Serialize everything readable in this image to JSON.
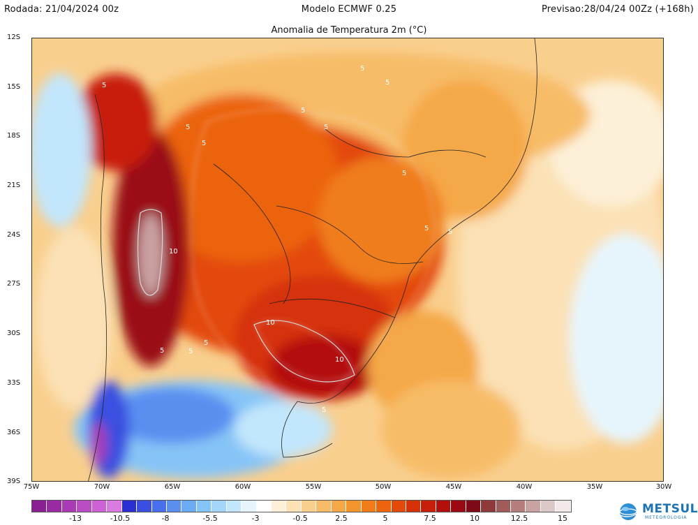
{
  "header": {
    "run": "Rodada: 21/04/2024 00z",
    "model": "Modelo ECMWF 0.25",
    "forecast": "Previsao:28/04/24 00Zz (+168h)"
  },
  "map": {
    "title": "Anomalia de Temperatura 2m (°C)",
    "lat_labels": [
      "12S",
      "15S",
      "18S",
      "21S",
      "24S",
      "27S",
      "30S",
      "33S",
      "36S",
      "39S"
    ],
    "lon_labels": [
      "75W",
      "70W",
      "65W",
      "60W",
      "55W",
      "50W",
      "45W",
      "40W",
      "35W",
      "30W"
    ],
    "contour_labels": [
      "5",
      "5",
      "5",
      "5",
      "5",
      "5",
      "5",
      "5",
      "5",
      "5",
      "10",
      "10",
      "10",
      "5",
      "5",
      "5",
      "5"
    ]
  },
  "colorbar": {
    "tick_labels": [
      "-13",
      "-10.5",
      "-8",
      "-5.5",
      "-3",
      "-0.5",
      "2.5",
      "5",
      "7.5",
      "10",
      "12.5",
      "15"
    ],
    "colors": [
      "#8a1f93",
      "#9a2aa3",
      "#aa3bb4",
      "#bb4dc4",
      "#cc62d3",
      "#d97be0",
      "#2a2fd4",
      "#3a4fe0",
      "#4a6fea",
      "#5a8ff0",
      "#6aabf4",
      "#86c4f7",
      "#a3d6f9",
      "#c2e6fb",
      "#e6f5fc",
      "#ffffff",
      "#fdf0d8",
      "#fbe1b5",
      "#f9cf8e",
      "#f7bc68",
      "#f5a847",
      "#f3942c",
      "#f07d1a",
      "#ec640f",
      "#e34a0a",
      "#d63208",
      "#c81f0a",
      "#b3100d",
      "#9a0a12",
      "#7d0a16",
      "#8e3a3a",
      "#a25b5b",
      "#b57e7e",
      "#c9a2a2",
      "#dcc7c7",
      "#f2e8e8"
    ]
  },
  "branding": {
    "logo_text": "METSUL",
    "logo_sub": "METEOROLOGIA"
  }
}
